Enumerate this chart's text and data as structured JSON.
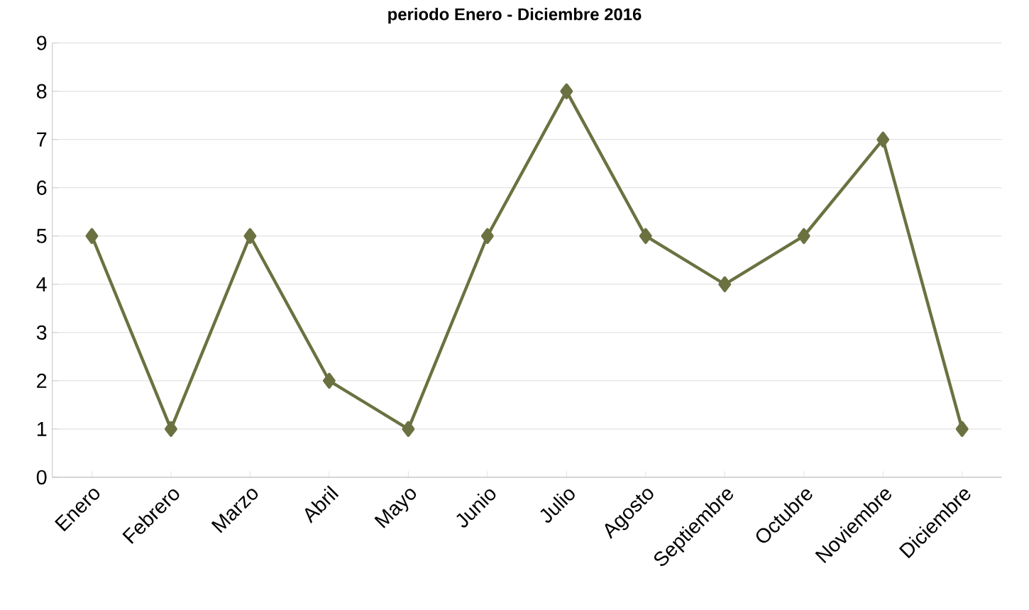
{
  "chart_data": {
    "type": "line",
    "title": "periodo Enero - Diciembre 2016",
    "categories": [
      "Enero",
      "Febrero",
      "Marzo",
      "Abril",
      "Mayo",
      "Junio",
      "Julio",
      "Agosto",
      "Septiembre",
      "Octubre",
      "Noviembre",
      "Diciembre"
    ],
    "series": [
      {
        "color": "#6b7140",
        "values": [
          5,
          1,
          5,
          2,
          1,
          5,
          8,
          5,
          4,
          5,
          7,
          1
        ]
      }
    ],
    "ylim": [
      0,
      9
    ],
    "yticks": [
      0,
      1,
      2,
      3,
      4,
      5,
      6,
      7,
      8,
      9
    ],
    "grid": "y",
    "marker": "diamond",
    "line_style": "solid"
  }
}
